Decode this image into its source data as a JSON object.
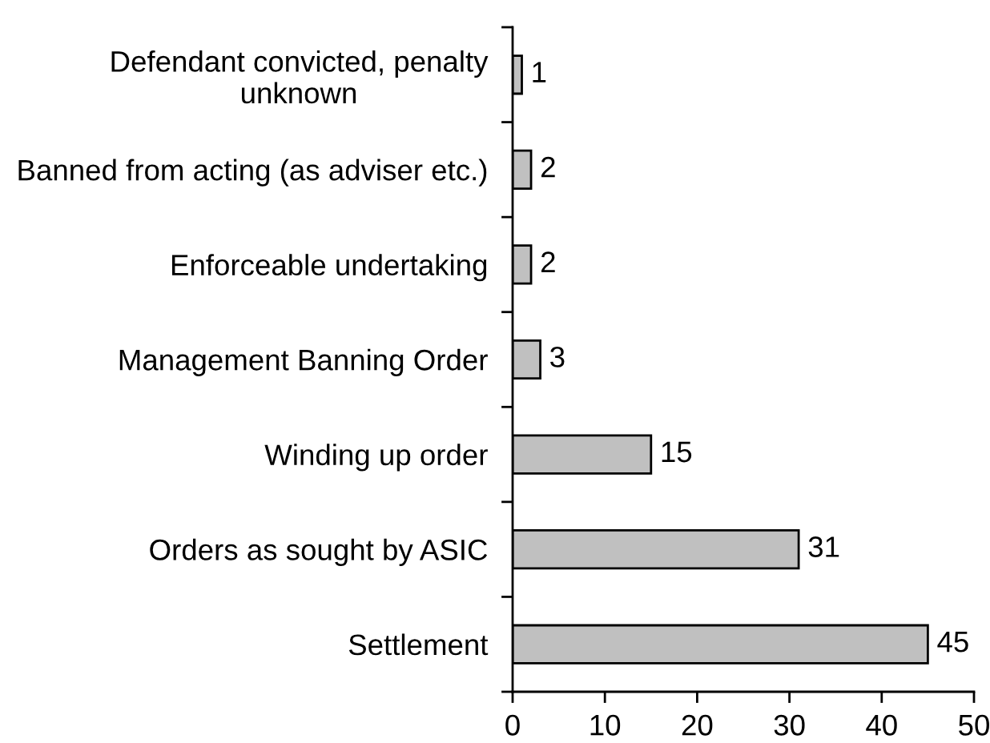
{
  "chart_data": {
    "type": "bar",
    "orientation": "horizontal",
    "categories": [
      "Defendant convicted, penalty\nunknown",
      "Banned from acting (as adviser etc.)",
      "Enforceable undertaking",
      "Management Banning Order",
      "Winding up order",
      "Orders as sought by ASIC",
      "Settlement"
    ],
    "values": [
      1,
      2,
      2,
      3,
      15,
      31,
      45
    ],
    "color": "#c0c0c0",
    "xlim": [
      0,
      50
    ],
    "xticks": [
      0,
      10,
      20,
      30,
      40,
      50
    ],
    "data_labels": true,
    "grid": false
  }
}
